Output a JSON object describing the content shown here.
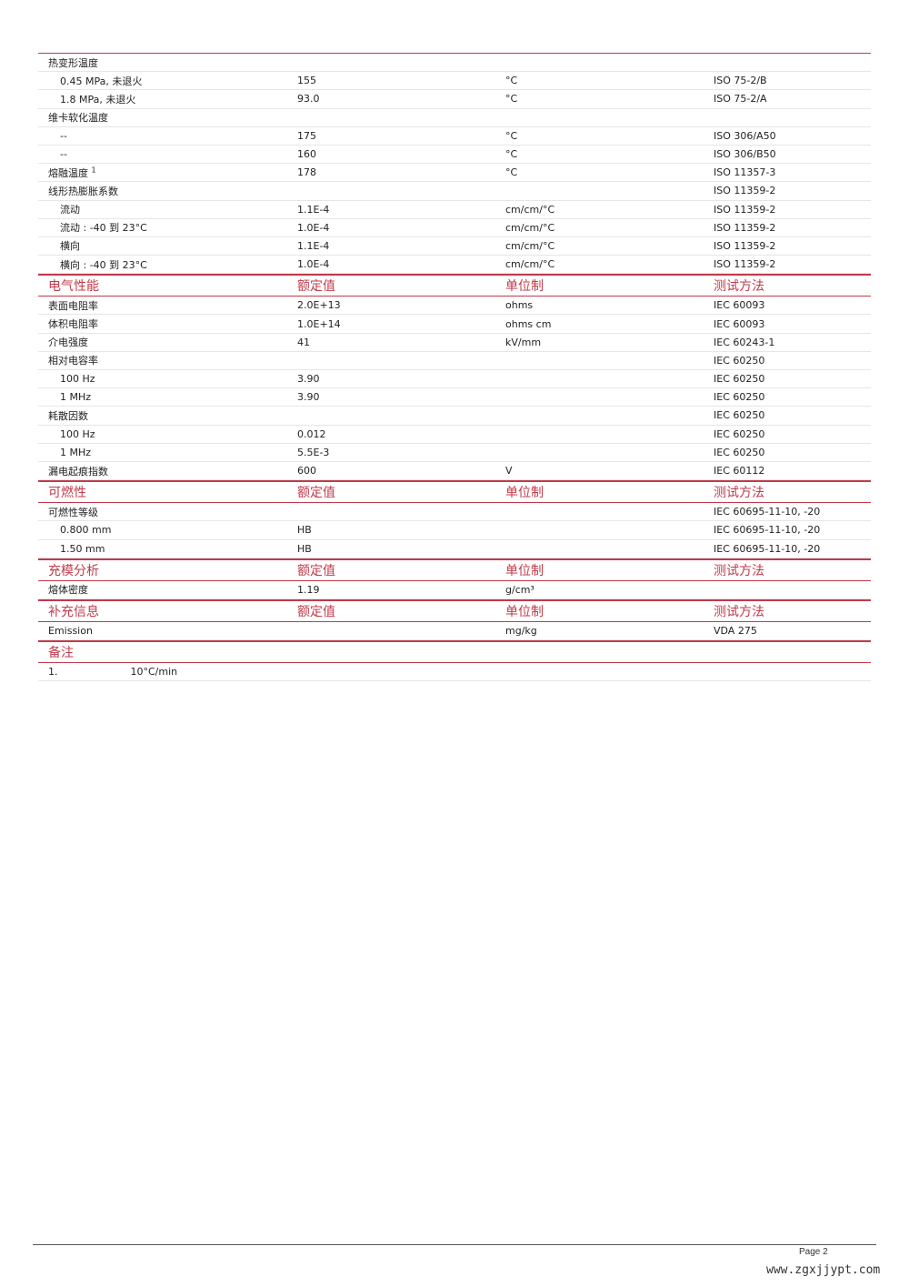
{
  "sections": [
    {
      "header": null,
      "rows": [
        {
          "name": "热变形温度",
          "indent": false,
          "value": "",
          "unit": "",
          "method": ""
        },
        {
          "name": "0.45 MPa, 未退火",
          "indent": true,
          "value": "155",
          "unit": "°C",
          "method": "ISO 75-2/B"
        },
        {
          "name": "1.8 MPa, 未退火",
          "indent": true,
          "value": "93.0",
          "unit": "°C",
          "method": "ISO 75-2/A"
        },
        {
          "name": "维卡软化温度",
          "indent": false,
          "value": "",
          "unit": "",
          "method": ""
        },
        {
          "name": "--",
          "indent": true,
          "value": "175",
          "unit": "°C",
          "method": "ISO 306/A50"
        },
        {
          "name": "--",
          "indent": true,
          "value": "160",
          "unit": "°C",
          "method": "ISO 306/B50"
        },
        {
          "name": "熔融温度",
          "sup": "1",
          "indent": false,
          "value": "178",
          "unit": "°C",
          "method": "ISO 11357-3"
        },
        {
          "name": "线形热膨胀系数",
          "indent": false,
          "value": "",
          "unit": "",
          "method": "ISO 11359-2"
        },
        {
          "name": "流动",
          "indent": true,
          "value": "1.1E-4",
          "unit": "cm/cm/°C",
          "method": "ISO 11359-2"
        },
        {
          "name": "流动 : -40 到 23°C",
          "indent": true,
          "value": "1.0E-4",
          "unit": "cm/cm/°C",
          "method": "ISO 11359-2"
        },
        {
          "name": "横向",
          "indent": true,
          "value": "1.1E-4",
          "unit": "cm/cm/°C",
          "method": "ISO 11359-2"
        },
        {
          "name": "横向 : -40 到 23°C",
          "indent": true,
          "value": "1.0E-4",
          "unit": "cm/cm/°C",
          "method": "ISO 11359-2"
        }
      ]
    },
    {
      "header": {
        "title": "电气性能",
        "value": "额定值",
        "unit": "单位制",
        "method": "测试方法"
      },
      "rows": [
        {
          "name": "表面电阻率",
          "indent": false,
          "value": "2.0E+13",
          "unit": "ohms",
          "method": "IEC 60093"
        },
        {
          "name": "体积电阻率",
          "indent": false,
          "value": "1.0E+14",
          "unit": "ohms cm",
          "method": "IEC 60093"
        },
        {
          "name": "介电强度",
          "indent": false,
          "value": "41",
          "unit": "kV/mm",
          "method": "IEC 60243-1"
        },
        {
          "name": "相对电容率",
          "indent": false,
          "value": "",
          "unit": "",
          "method": "IEC 60250"
        },
        {
          "name": "100 Hz",
          "indent": true,
          "value": "3.90",
          "unit": "",
          "method": "IEC 60250"
        },
        {
          "name": "1 MHz",
          "indent": true,
          "value": "3.90",
          "unit": "",
          "method": "IEC 60250"
        },
        {
          "name": "耗散因数",
          "indent": false,
          "value": "",
          "unit": "",
          "method": "IEC 60250"
        },
        {
          "name": "100 Hz",
          "indent": true,
          "value": "0.012",
          "unit": "",
          "method": "IEC 60250"
        },
        {
          "name": "1 MHz",
          "indent": true,
          "value": "5.5E-3",
          "unit": "",
          "method": "IEC 60250"
        },
        {
          "name": "漏电起痕指数",
          "indent": false,
          "value": "600",
          "unit": "V",
          "method": "IEC 60112"
        }
      ]
    },
    {
      "header": {
        "title": "可燃性",
        "value": "额定值",
        "unit": "单位制",
        "method": "测试方法"
      },
      "rows": [
        {
          "name": "可燃性等级",
          "indent": false,
          "value": "",
          "unit": "",
          "method": "IEC 60695-11-10, -20"
        },
        {
          "name": "0.800 mm",
          "indent": true,
          "value": "HB",
          "unit": "",
          "method": "IEC 60695-11-10, -20"
        },
        {
          "name": "1.50 mm",
          "indent": true,
          "value": "HB",
          "unit": "",
          "method": "IEC 60695-11-10, -20"
        }
      ]
    },
    {
      "header": {
        "title": "充模分析",
        "value": "额定值",
        "unit": "单位制",
        "method": "测试方法"
      },
      "rows": [
        {
          "name": "熔体密度",
          "indent": false,
          "value": "1.19",
          "unit": "g/cm³",
          "method": ""
        }
      ]
    },
    {
      "header": {
        "title": "补充信息",
        "value": "额定值",
        "unit": "单位制",
        "method": "测试方法"
      },
      "rows": [
        {
          "name": "Emission",
          "indent": false,
          "value": "",
          "unit": "mg/kg",
          "method": "VDA 275"
        }
      ]
    },
    {
      "header": {
        "title": "备注",
        "value": "",
        "unit": "",
        "method": ""
      },
      "rows": [
        {
          "name": "1.",
          "note": "10°C/min",
          "indent": false,
          "value": "",
          "unit": "",
          "method": ""
        }
      ]
    }
  ],
  "footer": {
    "page": "Page 2",
    "watermark": "www.zgxjjypt.com"
  },
  "colors": {
    "accent": "#c23a4a"
  }
}
